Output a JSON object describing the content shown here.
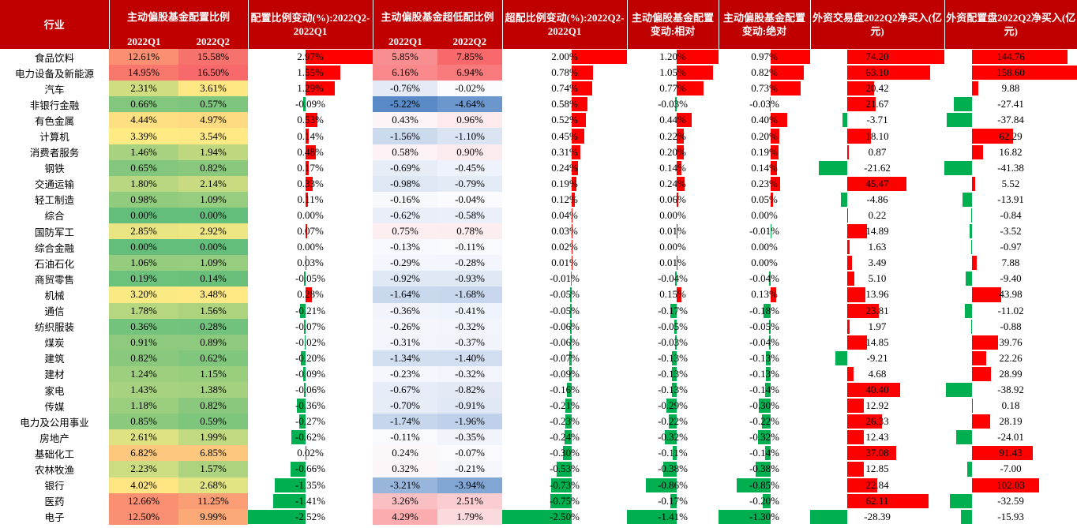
{
  "colors": {
    "header": "#c00000",
    "pos_bar": "#ff0000",
    "neg_bar": "#00b050"
  },
  "headers": {
    "industry": "行业",
    "alloc": "主动偏股基金配置比例",
    "alloc_chg": "配置比例变动(%):2022Q2-2022Q1",
    "over": "主动偏股基金超低配比例",
    "over_chg": "超配比例变动(%):2022Q2-2022Q1",
    "rel": "主动偏股基金配置变动:相对",
    "abs": "主动偏股基金配置变动:绝对",
    "trade": "外资交易盘2022Q2净买入(亿元)",
    "config": "外资配置盘2022Q2净买入(亿元)",
    "q1": "2022Q1",
    "q2": "2022Q2"
  },
  "rows": [
    {
      "name": "食品饮料",
      "a1": "12.61%",
      "a2": "15.58%",
      "ac": "2.97%",
      "o1": "5.85%",
      "o2": "7.85%",
      "oc": "2.00%",
      "rel": "1.20%",
      "abs": "0.97%",
      "tr": "74.20",
      "cf": "144.76"
    },
    {
      "name": "电力设备及新能源",
      "a1": "14.95%",
      "a2": "16.50%",
      "ac": "1.55%",
      "o1": "6.16%",
      "o2": "6.94%",
      "oc": "0.78%",
      "rel": "1.05%",
      "abs": "0.82%",
      "tr": "63.10",
      "cf": "158.60"
    },
    {
      "name": "汽车",
      "a1": "2.31%",
      "a2": "3.61%",
      "ac": "1.29%",
      "o1": "-0.76%",
      "o2": "-0.02%",
      "oc": "0.74%",
      "rel": "0.77%",
      "abs": "0.73%",
      "tr": "20.42",
      "cf": "9.88"
    },
    {
      "name": "非银行金融",
      "a1": "0.66%",
      "a2": "0.57%",
      "ac": "-0.09%",
      "o1": "-5.22%",
      "o2": "-4.64%",
      "oc": "0.58%",
      "rel": "-0.03%",
      "abs": "-0.03%",
      "tr": "21.67",
      "cf": "-27.41"
    },
    {
      "name": "有色金属",
      "a1": "4.44%",
      "a2": "4.97%",
      "ac": "0.53%",
      "o1": "0.43%",
      "o2": "0.96%",
      "oc": "0.52%",
      "rel": "0.44%",
      "abs": "0.40%",
      "tr": "-3.71",
      "cf": "-37.84"
    },
    {
      "name": "计算机",
      "a1": "3.39%",
      "a2": "3.54%",
      "ac": "0.14%",
      "o1": "-1.56%",
      "o2": "-1.10%",
      "oc": "0.45%",
      "rel": "0.22%",
      "abs": "0.20%",
      "tr": "18.10",
      "cf": "62.29"
    },
    {
      "name": "消费者服务",
      "a1": "1.46%",
      "a2": "1.94%",
      "ac": "0.48%",
      "o1": "0.58%",
      "o2": "0.90%",
      "oc": "0.31%",
      "rel": "0.20%",
      "abs": "0.19%",
      "tr": "0.87",
      "cf": "16.82"
    },
    {
      "name": "钢铁",
      "a1": "0.65%",
      "a2": "0.82%",
      "ac": "0.17%",
      "o1": "-0.69%",
      "o2": "-0.45%",
      "oc": "0.24%",
      "rel": "0.14%",
      "abs": "0.14%",
      "tr": "-21.62",
      "cf": "-41.38"
    },
    {
      "name": "交通运输",
      "a1": "1.80%",
      "a2": "2.14%",
      "ac": "0.33%",
      "o1": "-0.98%",
      "o2": "-0.79%",
      "oc": "0.19%",
      "rel": "0.24%",
      "abs": "0.23%",
      "tr": "45.47",
      "cf": "5.52"
    },
    {
      "name": "轻工制造",
      "a1": "0.98%",
      "a2": "1.09%",
      "ac": "0.11%",
      "o1": "-0.16%",
      "o2": "-0.04%",
      "oc": "0.12%",
      "rel": "0.06%",
      "abs": "0.05%",
      "tr": "-4.86",
      "cf": "-13.91"
    },
    {
      "name": "综合",
      "a1": "0.00%",
      "a2": "0.00%",
      "ac": "0.00%",
      "o1": "-0.62%",
      "o2": "-0.58%",
      "oc": "0.04%",
      "rel": "0.00%",
      "abs": "0.00%",
      "tr": "0.22",
      "cf": "-0.84"
    },
    {
      "name": "国防军工",
      "a1": "2.85%",
      "a2": "2.92%",
      "ac": "0.07%",
      "o1": "0.75%",
      "o2": "0.78%",
      "oc": "0.03%",
      "rel": "0.01%",
      "abs": "-0.01%",
      "tr": "14.89",
      "cf": "-3.52"
    },
    {
      "name": "综合金融",
      "a1": "0.00%",
      "a2": "0.00%",
      "ac": "0.00%",
      "o1": "-0.13%",
      "o2": "-0.11%",
      "oc": "0.02%",
      "rel": "0.00%",
      "abs": "0.00%",
      "tr": "1.63",
      "cf": "-0.97"
    },
    {
      "name": "石油石化",
      "a1": "1.06%",
      "a2": "1.09%",
      "ac": "0.03%",
      "o1": "-0.29%",
      "o2": "-0.28%",
      "oc": "0.01%",
      "rel": "0.01%",
      "abs": "0.00%",
      "tr": "3.49",
      "cf": "7.88"
    },
    {
      "name": "商贸零售",
      "a1": "0.19%",
      "a2": "0.14%",
      "ac": "-0.05%",
      "o1": "-0.92%",
      "o2": "-0.93%",
      "oc": "-0.01%",
      "rel": "-0.04%",
      "abs": "-0.04%",
      "tr": "5.10",
      "cf": "-9.40"
    },
    {
      "name": "机械",
      "a1": "3.20%",
      "a2": "3.48%",
      "ac": "0.28%",
      "o1": "-1.64%",
      "o2": "-1.68%",
      "oc": "-0.05%",
      "rel": "0.15%",
      "abs": "0.13%",
      "tr": "13.96",
      "cf": "43.98"
    },
    {
      "name": "通信",
      "a1": "1.78%",
      "a2": "1.56%",
      "ac": "-0.21%",
      "o1": "-0.36%",
      "o2": "-0.41%",
      "oc": "-0.05%",
      "rel": "-0.17%",
      "abs": "-0.18%",
      "tr": "23.81",
      "cf": "-11.02"
    },
    {
      "name": "纺织服装",
      "a1": "0.36%",
      "a2": "0.28%",
      "ac": "-0.07%",
      "o1": "-0.26%",
      "o2": "-0.32%",
      "oc": "-0.06%",
      "rel": "-0.05%",
      "abs": "-0.05%",
      "tr": "1.97",
      "cf": "-0.88"
    },
    {
      "name": "煤炭",
      "a1": "0.91%",
      "a2": "0.89%",
      "ac": "-0.02%",
      "o1": "-0.31%",
      "o2": "-0.37%",
      "oc": "-0.06%",
      "rel": "-0.03%",
      "abs": "-0.04%",
      "tr": "14.85",
      "cf": "39.76"
    },
    {
      "name": "建筑",
      "a1": "0.82%",
      "a2": "0.62%",
      "ac": "-0.20%",
      "o1": "-1.34%",
      "o2": "-1.40%",
      "oc": "-0.07%",
      "rel": "-0.13%",
      "abs": "-0.13%",
      "tr": "-9.21",
      "cf": "22.26"
    },
    {
      "name": "建材",
      "a1": "1.24%",
      "a2": "1.15%",
      "ac": "-0.09%",
      "o1": "-0.23%",
      "o2": "-0.32%",
      "oc": "-0.09%",
      "rel": "-0.13%",
      "abs": "-0.13%",
      "tr": "4.68",
      "cf": "28.99"
    },
    {
      "name": "家电",
      "a1": "1.43%",
      "a2": "1.38%",
      "ac": "-0.06%",
      "o1": "-0.67%",
      "o2": "-0.82%",
      "oc": "-0.16%",
      "rel": "-0.13%",
      "abs": "-0.14%",
      "tr": "40.40",
      "cf": "-38.92"
    },
    {
      "name": "传媒",
      "a1": "1.18%",
      "a2": "0.82%",
      "ac": "-0.36%",
      "o1": "-0.70%",
      "o2": "-0.91%",
      "oc": "-0.21%",
      "rel": "-0.29%",
      "abs": "-0.30%",
      "tr": "12.92",
      "cf": "0.18"
    },
    {
      "name": "电力及公用事业",
      "a1": "0.85%",
      "a2": "0.59%",
      "ac": "-0.27%",
      "o1": "-1.74%",
      "o2": "-1.96%",
      "oc": "-0.23%",
      "rel": "-0.22%",
      "abs": "-0.22%",
      "tr": "26.33",
      "cf": "28.19"
    },
    {
      "name": "房地产",
      "a1": "2.61%",
      "a2": "1.99%",
      "ac": "-0.62%",
      "o1": "-0.11%",
      "o2": "-0.35%",
      "oc": "-0.24%",
      "rel": "-0.32%",
      "abs": "-0.32%",
      "tr": "12.43",
      "cf": "-24.01"
    },
    {
      "name": "基础化工",
      "a1": "6.82%",
      "a2": "6.85%",
      "ac": "0.02%",
      "o1": "0.24%",
      "o2": "-0.07%",
      "oc": "-0.30%",
      "rel": "-0.11%",
      "abs": "-0.14%",
      "tr": "37.08",
      "cf": "91.43"
    },
    {
      "name": "农林牧渔",
      "a1": "2.23%",
      "a2": "1.57%",
      "ac": "-0.66%",
      "o1": "0.32%",
      "o2": "-0.21%",
      "oc": "-0.53%",
      "rel": "-0.38%",
      "abs": "-0.38%",
      "tr": "12.85",
      "cf": "-7.00"
    },
    {
      "name": "银行",
      "a1": "4.02%",
      "a2": "2.68%",
      "ac": "-1.35%",
      "o1": "-3.21%",
      "o2": "-3.94%",
      "oc": "-0.73%",
      "rel": "-0.86%",
      "abs": "-0.85%",
      "tr": "22.84",
      "cf": "102.03"
    },
    {
      "name": "医药",
      "a1": "12.66%",
      "a2": "11.25%",
      "ac": "-1.41%",
      "o1": "3.26%",
      "o2": "2.51%",
      "oc": "-0.75%",
      "rel": "-0.17%",
      "abs": "-0.20%",
      "tr": "62.11",
      "cf": "-32.59"
    },
    {
      "name": "电子",
      "a1": "12.50%",
      "a2": "9.99%",
      "ac": "-2.52%",
      "o1": "4.29%",
      "o2": "1.79%",
      "oc": "-2.50%",
      "rel": "-1.41%",
      "abs": "-1.30%",
      "tr": "-28.39",
      "cf": "-15.93"
    }
  ]
}
